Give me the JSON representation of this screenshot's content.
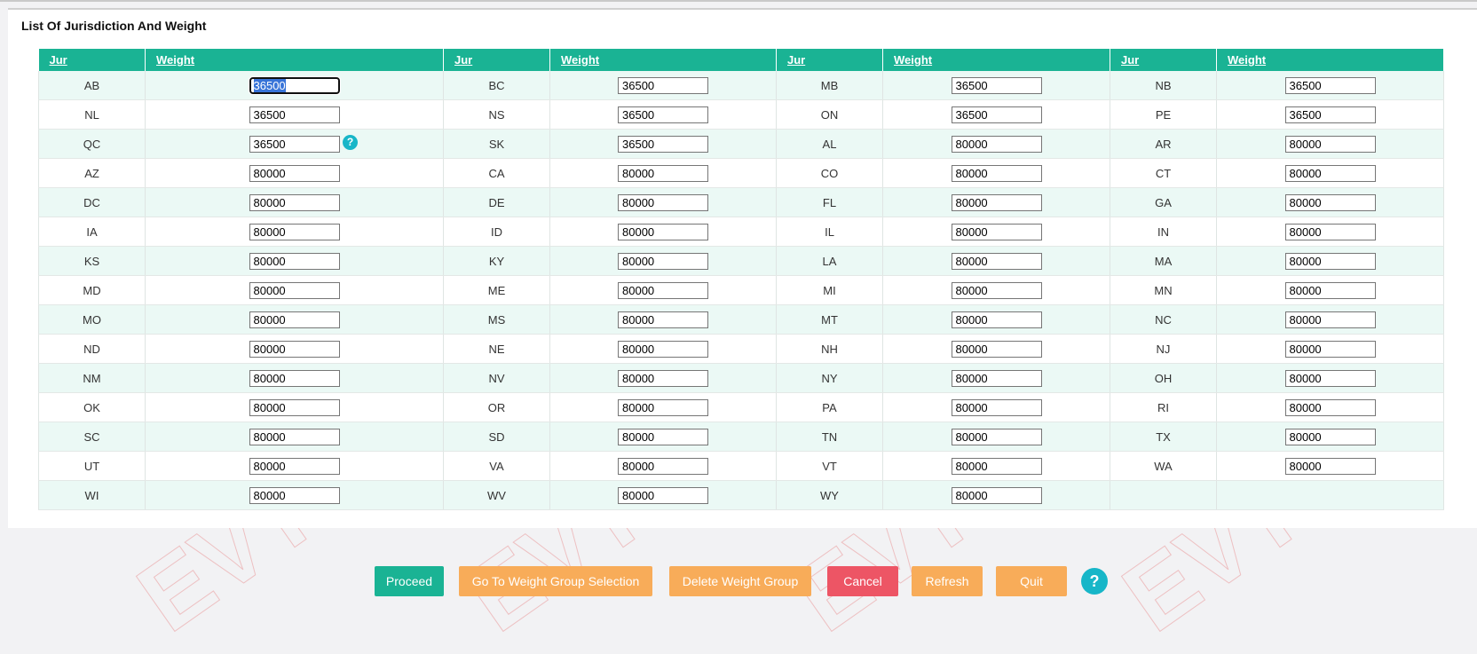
{
  "panel": {
    "title": "List Of Jurisdiction And Weight"
  },
  "table": {
    "headers": [
      "Jur",
      "Weight",
      "Jur",
      "Weight",
      "Jur",
      "Weight",
      "Jur",
      "Weight"
    ],
    "rows": [
      [
        [
          "AB",
          "36500"
        ],
        [
          "BC",
          "36500"
        ],
        [
          "MB",
          "36500"
        ],
        [
          "NB",
          "36500"
        ]
      ],
      [
        [
          "NL",
          "36500"
        ],
        [
          "NS",
          "36500"
        ],
        [
          "ON",
          "36500"
        ],
        [
          "PE",
          "36500"
        ]
      ],
      [
        [
          "QC",
          "36500"
        ],
        [
          "SK",
          "36500"
        ],
        [
          "AL",
          "80000"
        ],
        [
          "AR",
          "80000"
        ]
      ],
      [
        [
          "AZ",
          "80000"
        ],
        [
          "CA",
          "80000"
        ],
        [
          "CO",
          "80000"
        ],
        [
          "CT",
          "80000"
        ]
      ],
      [
        [
          "DC",
          "80000"
        ],
        [
          "DE",
          "80000"
        ],
        [
          "FL",
          "80000"
        ],
        [
          "GA",
          "80000"
        ]
      ],
      [
        [
          "IA",
          "80000"
        ],
        [
          "ID",
          "80000"
        ],
        [
          "IL",
          "80000"
        ],
        [
          "IN",
          "80000"
        ]
      ],
      [
        [
          "KS",
          "80000"
        ],
        [
          "KY",
          "80000"
        ],
        [
          "LA",
          "80000"
        ],
        [
          "MA",
          "80000"
        ]
      ],
      [
        [
          "MD",
          "80000"
        ],
        [
          "ME",
          "80000"
        ],
        [
          "MI",
          "80000"
        ],
        [
          "MN",
          "80000"
        ]
      ],
      [
        [
          "MO",
          "80000"
        ],
        [
          "MS",
          "80000"
        ],
        [
          "MT",
          "80000"
        ],
        [
          "NC",
          "80000"
        ]
      ],
      [
        [
          "ND",
          "80000"
        ],
        [
          "NE",
          "80000"
        ],
        [
          "NH",
          "80000"
        ],
        [
          "NJ",
          "80000"
        ]
      ],
      [
        [
          "NM",
          "80000"
        ],
        [
          "NV",
          "80000"
        ],
        [
          "NY",
          "80000"
        ],
        [
          "OH",
          "80000"
        ]
      ],
      [
        [
          "OK",
          "80000"
        ],
        [
          "OR",
          "80000"
        ],
        [
          "PA",
          "80000"
        ],
        [
          "RI",
          "80000"
        ]
      ],
      [
        [
          "SC",
          "80000"
        ],
        [
          "SD",
          "80000"
        ],
        [
          "TN",
          "80000"
        ],
        [
          "TX",
          "80000"
        ]
      ],
      [
        [
          "UT",
          "80000"
        ],
        [
          "VA",
          "80000"
        ],
        [
          "VT",
          "80000"
        ],
        [
          "WA",
          "80000"
        ]
      ],
      [
        [
          "WI",
          "80000"
        ],
        [
          "WV",
          "80000"
        ],
        [
          "WY",
          "80000"
        ],
        null
      ]
    ],
    "help_icon": "question-icon",
    "help_glyph": "?"
  },
  "buttons": {
    "proceed": "Proceed",
    "go_to_weight_group": "Go To Weight Group Selection",
    "delete_weight_group": "Delete Weight Group",
    "cancel": "Cancel",
    "refresh": "Refresh",
    "quit": "Quit",
    "help_glyph": "?"
  },
  "colors": {
    "header_green": "#1ab394",
    "row_tint": "#ebf9f5",
    "button_green": "#1ab394",
    "button_orange": "#f8ac59",
    "button_red": "#ed5565",
    "help_teal": "#17b6c8"
  }
}
